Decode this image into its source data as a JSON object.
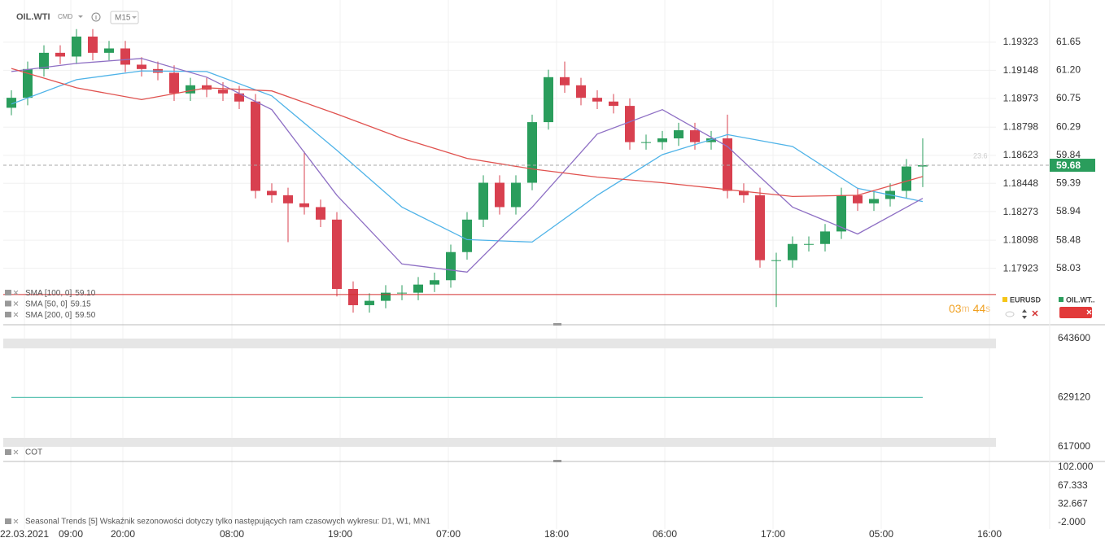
{
  "header": {
    "symbol": "OIL.WTI",
    "market": "CMD",
    "interval": "M15"
  },
  "overlay": {
    "eurusd": "EURUSD",
    "oil": "OIL.WT..",
    "fib": "23.6",
    "countdown": [
      "03",
      "m",
      "44",
      "s"
    ]
  },
  "chart_data": [
    {
      "type": "candlestick",
      "xlim": [
        -0.5,
        60.5
      ],
      "xticks": [
        {
          "value": 0.8,
          "label": "22.03.2021"
        },
        {
          "value": 3.65,
          "label": "09:00"
        },
        {
          "value": 6.85,
          "label": "20:00"
        },
        {
          "value": 13.55,
          "label": "08:00"
        },
        {
          "value": 20.2,
          "label": "19:00"
        },
        {
          "value": 26.85,
          "label": "07:00"
        },
        {
          "value": 33.5,
          "label": "18:00"
        },
        {
          "value": 40.15,
          "label": "06:00"
        },
        {
          "value": 46.8,
          "label": "17:00"
        },
        {
          "value": 53.45,
          "label": "05:00"
        },
        {
          "value": 60.1,
          "label": "16:00"
        }
      ],
      "ylim": [
        57.14,
        62.26
      ],
      "yticks": [
        61.65,
        {
          "value": 61.2,
          "label": "61.20"
        },
        60.75,
        60.29,
        59.84,
        59.39,
        58.94,
        58.48,
        58.03
      ],
      "y2lim": [
        1.17581,
        1.1956
      ],
      "y2ticks": [
        1.19323,
        1.19148,
        1.18973,
        1.18798,
        1.18623,
        1.18448,
        1.18273,
        1.18098,
        1.17923
      ],
      "grid": true,
      "candles": {
        "up_color": "#2a9d5c",
        "down_color": "#d8404f",
        "open": [
          60.6,
          60.76,
          61.22,
          61.48,
          61.42,
          61.74,
          61.48,
          61.55,
          61.29,
          61.22,
          61.16,
          60.83,
          60.96,
          60.89,
          60.83,
          60.7,
          59.27,
          59.2,
          59.07,
          59.01,
          58.81,
          57.7,
          57.44,
          57.51,
          57.64,
          57.64,
          57.77,
          57.84,
          58.29,
          58.81,
          59.4,
          59.01,
          59.4,
          60.37,
          61.09,
          60.96,
          60.76,
          60.7,
          60.63,
          60.05,
          60.05,
          60.11,
          60.24,
          60.05,
          60.11,
          59.27,
          59.2,
          58.16,
          58.16,
          58.42,
          58.42,
          58.62,
          59.2,
          59.07,
          59.14,
          59.27,
          59.66
        ],
        "high": [
          60.88,
          61.34,
          61.6,
          61.6,
          61.86,
          61.86,
          61.67,
          61.67,
          61.41,
          61.34,
          61.28,
          61.08,
          61.08,
          61.01,
          60.95,
          60.82,
          59.39,
          59.32,
          59.9,
          59.13,
          58.93,
          57.82,
          57.63,
          57.76,
          57.76,
          57.89,
          57.96,
          58.41,
          58.93,
          59.52,
          59.52,
          59.52,
          60.49,
          61.21,
          61.34,
          61.08,
          60.88,
          60.82,
          60.75,
          60.17,
          60.23,
          60.36,
          60.36,
          60.23,
          60.49,
          59.39,
          59.32,
          58.28,
          58.54,
          58.54,
          58.74,
          59.32,
          59.32,
          59.26,
          59.39,
          59.78,
          60.11
        ],
        "low": [
          60.48,
          60.64,
          61.1,
          61.3,
          61.3,
          61.36,
          61.36,
          61.17,
          61.1,
          61.04,
          60.71,
          60.71,
          60.77,
          60.71,
          60.58,
          59.15,
          59.08,
          58.45,
          58.89,
          58.69,
          57.58,
          57.32,
          57.32,
          57.39,
          57.52,
          57.52,
          57.65,
          57.72,
          58.17,
          58.69,
          58.89,
          58.89,
          59.28,
          60.25,
          60.84,
          60.64,
          60.58,
          60.51,
          59.93,
          59.93,
          59.93,
          59.99,
          59.93,
          59.93,
          59.15,
          59.08,
          58.04,
          57.41,
          58.04,
          58.3,
          58.3,
          58.5,
          58.95,
          58.95,
          59.02,
          59.15,
          59.33
        ],
        "close": [
          60.76,
          61.22,
          61.48,
          61.42,
          61.74,
          61.48,
          61.55,
          61.29,
          61.22,
          61.16,
          60.83,
          60.96,
          60.89,
          60.83,
          60.7,
          59.27,
          59.2,
          59.07,
          59.01,
          58.81,
          57.7,
          57.44,
          57.51,
          57.64,
          57.64,
          57.77,
          57.84,
          58.29,
          58.81,
          59.4,
          59.01,
          59.4,
          60.37,
          61.09,
          60.96,
          60.76,
          60.7,
          60.63,
          60.05,
          60.05,
          60.11,
          60.24,
          60.05,
          60.11,
          59.27,
          59.2,
          58.16,
          58.16,
          58.42,
          58.42,
          58.62,
          59.2,
          59.07,
          59.14,
          59.27,
          59.66,
          59.68
        ]
      },
      "series": [
        {
          "name": "SMA [100, 0]",
          "color": "#4fb3e8",
          "last_label": "59.10",
          "x": [
            0,
            4,
            8,
            12,
            16,
            20,
            24,
            28,
            32,
            36,
            40,
            44,
            48,
            52,
            56
          ],
          "values": [
            60.66,
            61.05,
            61.19,
            61.18,
            60.79,
            59.92,
            59.01,
            58.49,
            58.45,
            59.2,
            59.85,
            60.17,
            59.98,
            59.31,
            59.1
          ]
        },
        {
          "name": "SMA [50, 0]",
          "color": "#8e6fc4",
          "last_label": "59.15",
          "x": [
            0,
            4,
            8,
            12,
            16,
            20,
            24,
            28,
            32,
            36,
            40,
            44,
            48,
            52,
            56
          ],
          "values": [
            61.18,
            61.31,
            61.39,
            61.09,
            60.57,
            59.2,
            58.1,
            57.97,
            59.01,
            60.18,
            60.57,
            59.98,
            59.01,
            58.58,
            59.15
          ]
        },
        {
          "name": "SMA [200, 0]",
          "color": "#e0524f",
          "last_label": "59.50",
          "x": [
            0,
            4,
            8,
            12,
            16,
            20,
            24,
            28,
            32,
            36,
            40,
            44,
            48,
            52,
            56
          ],
          "values": [
            61.23,
            60.92,
            60.73,
            60.92,
            60.87,
            60.5,
            60.11,
            59.79,
            59.62,
            59.49,
            59.4,
            59.29,
            59.18,
            59.2,
            59.5
          ]
        }
      ],
      "last_price": 59.68,
      "last_price_color": "#2a9d5c",
      "support_level": 57.61,
      "support_color": "#d32f2f"
    },
    {
      "type": "line",
      "title": "COT",
      "ylim": [
        613600,
        646800
      ],
      "yticks": [
        643600,
        629120,
        617000
      ],
      "series": [
        {
          "color": "#5fc4b4",
          "x": [
            0,
            56
          ],
          "values": [
            629120,
            629120
          ]
        }
      ]
    },
    {
      "type": "line",
      "title": "Seasonal Trends [5] Wskaźnik sezonowości dotyczy tylko następujących ram czasowych wykresu: D1, W1, MN1",
      "ylim": [
        -2,
        102
      ],
      "yticks": [
        {
          "value": 102,
          "label": "102.000"
        },
        {
          "value": 67.333,
          "label": "67.333"
        },
        {
          "value": 32.667,
          "label": "32.667"
        },
        {
          "value": -2,
          "label": "-2.000"
        }
      ],
      "series": []
    }
  ]
}
